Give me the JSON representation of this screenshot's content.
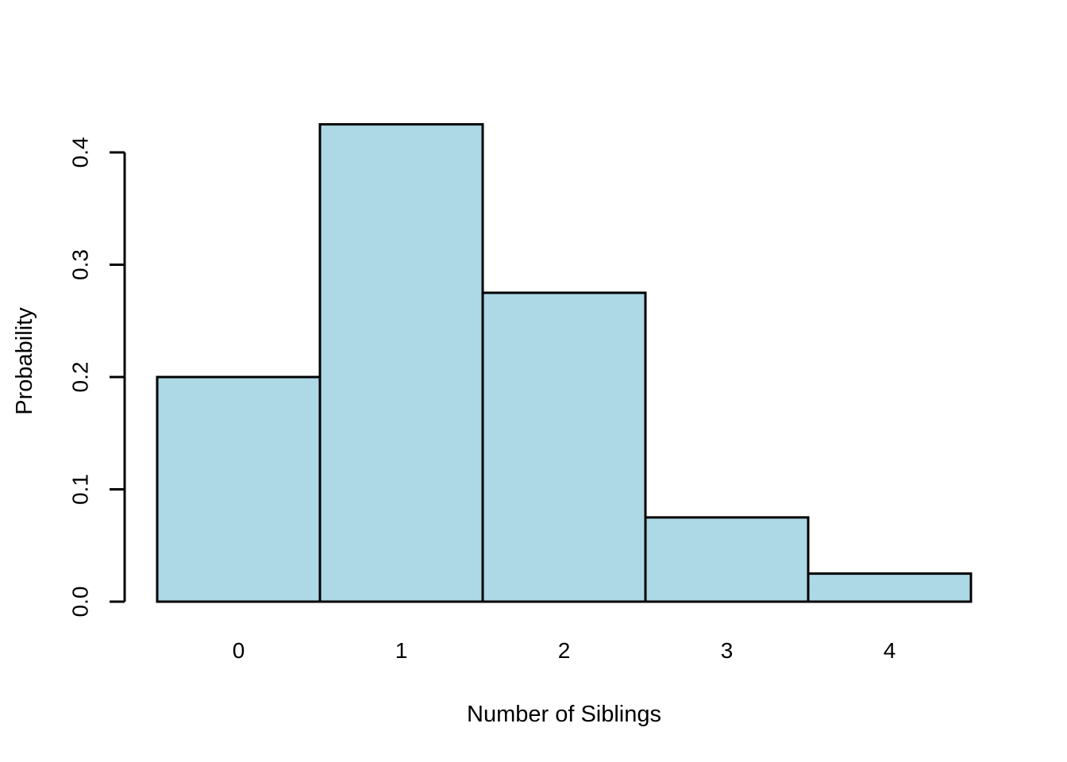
{
  "chart_data": {
    "type": "bar",
    "title": "",
    "xlabel": "Number of Siblings",
    "ylabel": "Probability",
    "categories": [
      "0",
      "1",
      "2",
      "3",
      "4"
    ],
    "values": [
      0.2,
      0.425,
      0.275,
      0.075,
      0.025
    ],
    "series": [
      {
        "name": "Probability",
        "values": [
          0.2,
          0.425,
          0.275,
          0.075,
          0.025
        ]
      }
    ],
    "ytick_labels": [
      "0.0",
      "0.1",
      "0.2",
      "0.3",
      "0.4"
    ],
    "ytick_values": [
      0.0,
      0.1,
      0.2,
      0.3,
      0.4
    ],
    "ylim": [
      0,
      0.425
    ],
    "xlim_categories": [
      "0",
      "4"
    ],
    "grid": "off",
    "legend": "none",
    "bar_fill": "#ADD8E6",
    "bar_border": "#000000",
    "axis_color": "#000000",
    "background": "#ffffff"
  }
}
